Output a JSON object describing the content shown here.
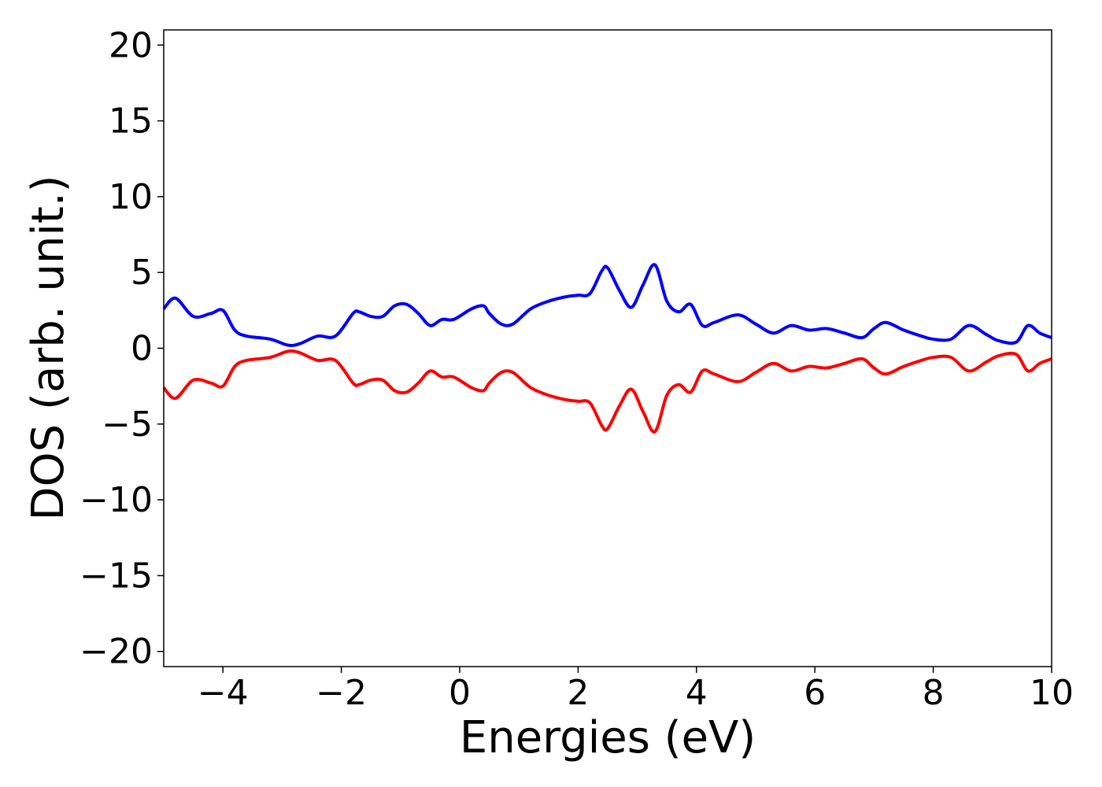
{
  "chart_data": {
    "type": "line",
    "title": "",
    "xlabel": "Energies (eV)",
    "ylabel": "DOS (arb. unit.)",
    "xlim": [
      -5,
      10
    ],
    "ylim": [
      -21,
      21
    ],
    "xticks": [
      -4,
      -2,
      0,
      2,
      4,
      6,
      8,
      10
    ],
    "xtick_labels": [
      "−4",
      "−2",
      "0",
      "2",
      "4",
      "6",
      "8",
      "10"
    ],
    "yticks": [
      -20,
      -15,
      -10,
      -5,
      0,
      5,
      10,
      15,
      20
    ],
    "ytick_labels": [
      "−20",
      "−15",
      "−10",
      "−5",
      "0",
      "5",
      "10",
      "15",
      "20"
    ],
    "grid": false,
    "legend": "none",
    "x": [
      -5.0,
      -4.8,
      -4.5,
      -4.2,
      -4.0,
      -3.8,
      -3.6,
      -3.2,
      -2.9,
      -2.7,
      -2.4,
      -2.1,
      -1.8,
      -1.7,
      -1.5,
      -1.3,
      -1.1,
      -0.9,
      -0.7,
      -0.5,
      -0.3,
      -0.1,
      0.2,
      0.4,
      0.5,
      0.7,
      0.9,
      1.2,
      1.5,
      1.8,
      2.0,
      2.2,
      2.4,
      2.5,
      2.7,
      2.9,
      3.1,
      3.3,
      3.5,
      3.7,
      3.9,
      4.1,
      4.3,
      4.7,
      5.0,
      5.3,
      5.6,
      5.9,
      6.2,
      6.5,
      6.8,
      7.0,
      7.2,
      7.5,
      7.8,
      8.0,
      8.3,
      8.6,
      8.9,
      9.1,
      9.4,
      9.6,
      9.8,
      10.0
    ],
    "series": [
      {
        "color": "#0000ff",
        "values": [
          2.6,
          3.3,
          2.1,
          2.3,
          2.5,
          1.2,
          0.8,
          0.6,
          0.2,
          0.3,
          0.8,
          0.8,
          2.3,
          2.4,
          2.1,
          2.1,
          2.8,
          2.9,
          2.3,
          1.5,
          1.9,
          1.9,
          2.6,
          2.8,
          2.3,
          1.6,
          1.6,
          2.6,
          3.1,
          3.4,
          3.5,
          3.6,
          5.1,
          5.3,
          3.8,
          2.7,
          4.2,
          5.5,
          3.1,
          2.4,
          2.9,
          1.5,
          1.7,
          2.2,
          1.6,
          1.0,
          1.5,
          1.2,
          1.3,
          1.0,
          0.7,
          1.3,
          1.7,
          1.2,
          0.8,
          0.6,
          0.6,
          1.5,
          0.9,
          0.5,
          0.4,
          1.5,
          1.0,
          0.7
        ]
      },
      {
        "color": "#ff0000",
        "values": [
          -2.6,
          -3.3,
          -2.1,
          -2.3,
          -2.5,
          -1.2,
          -0.8,
          -0.6,
          -0.2,
          -0.3,
          -0.8,
          -0.8,
          -2.3,
          -2.4,
          -2.1,
          -2.1,
          -2.8,
          -2.9,
          -2.3,
          -1.5,
          -1.9,
          -1.9,
          -2.6,
          -2.8,
          -2.3,
          -1.6,
          -1.6,
          -2.6,
          -3.1,
          -3.4,
          -3.5,
          -3.6,
          -5.1,
          -5.3,
          -3.8,
          -2.7,
          -4.2,
          -5.5,
          -3.1,
          -2.4,
          -2.9,
          -1.5,
          -1.7,
          -2.2,
          -1.6,
          -1.0,
          -1.5,
          -1.2,
          -1.3,
          -1.0,
          -0.7,
          -1.3,
          -1.7,
          -1.2,
          -0.8,
          -0.6,
          -0.6,
          -1.5,
          -0.9,
          -0.5,
          -0.4,
          -1.5,
          -1.0,
          -0.7
        ]
      }
    ]
  }
}
